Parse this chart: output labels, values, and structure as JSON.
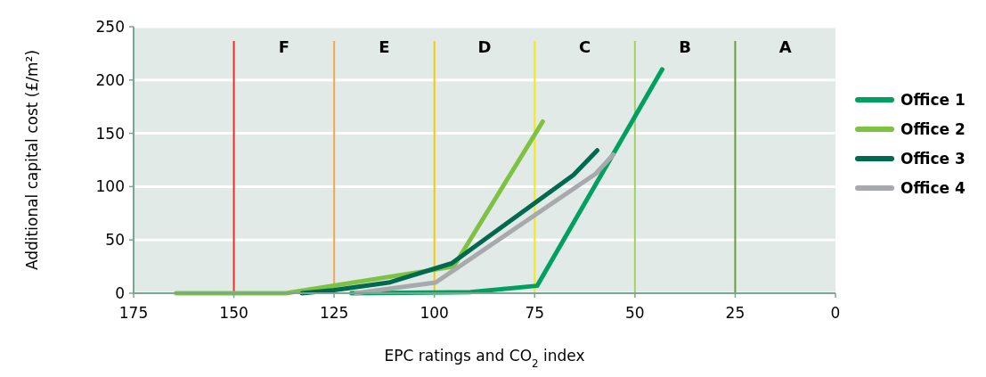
{
  "chart_data": {
    "type": "line",
    "xlabel": "EPC ratings and CO$_{2}$ index",
    "ylabel": "Additional capital cost (£/m²)",
    "xlim": [
      175,
      0
    ],
    "xticks": [
      175,
      150,
      125,
      100,
      75,
      50,
      25,
      0
    ],
    "ylim": [
      0,
      250
    ],
    "yticks": [
      0,
      50,
      100,
      150,
      200,
      250
    ],
    "grid": "y",
    "legend": "right",
    "line_style": "solid",
    "marker": "none",
    "series": [
      {
        "name": "Office 1",
        "color": "#00a060",
        "x": [
          120.7,
          91,
          74.4,
          43.2
        ],
        "values": [
          0,
          1,
          7,
          210
        ]
      },
      {
        "name": "Office 2",
        "color": "#7dc242",
        "x": [
          164.4,
          137,
          95.2,
          73
        ],
        "values": [
          0,
          0,
          25,
          161
        ]
      },
      {
        "name": "Office 3",
        "color": "#006a4e",
        "x": [
          133,
          125,
          111.4,
          95.7,
          65.3,
          59.4
        ],
        "values": [
          0,
          3,
          10,
          28,
          111,
          134
        ]
      },
      {
        "name": "Office 4",
        "color": "#a7a9ac",
        "x": [
          119.6,
          99.7,
          59.8,
          55.4
        ],
        "values": [
          0,
          10,
          112,
          130
        ]
      }
    ],
    "ref_lines": [
      {
        "axis": "x",
        "value": 150,
        "color": "#e8312a"
      },
      {
        "axis": "x",
        "value": 125,
        "color": "#f7a558"
      },
      {
        "axis": "x",
        "value": 100,
        "color": "#f9c900"
      },
      {
        "axis": "x",
        "value": 75,
        "color": "#f5ea14"
      },
      {
        "axis": "x",
        "value": 50,
        "color": "#a4d165"
      },
      {
        "axis": "x",
        "value": 25,
        "color": "#6a9e3c"
      }
    ],
    "annotations": [
      "F",
      "E",
      "D",
      "C",
      "B",
      "A"
    ]
  }
}
